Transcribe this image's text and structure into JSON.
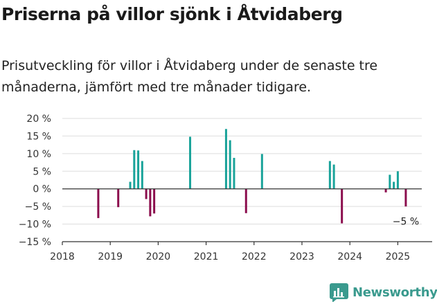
{
  "header": {
    "title": "Priserna på villor sjönk i Åtvidaberg",
    "subtitle": "Prisutveckling för villor i Åtvidaberg under de senaste tre månaderna, jämfört med tre månader tidigare."
  },
  "brand": {
    "name": "Newsworthy",
    "icon": "newsworthy-logo-icon",
    "color": "#3a9a8e"
  },
  "chart_data": {
    "type": "bar",
    "title": "",
    "xlabel": "",
    "ylabel": "",
    "ylim": [
      -15,
      20
    ],
    "xlim": [
      "2018-01",
      "2025-07"
    ],
    "grid": true,
    "colors": {
      "positive": "#1aa39a",
      "negative": "#8b0d4d",
      "zero_line": "#333333",
      "grid": "#dddddd"
    },
    "y_ticks": [
      {
        "value": 20,
        "label": "20 %"
      },
      {
        "value": 15,
        "label": "15 %"
      },
      {
        "value": 10,
        "label": "10 %"
      },
      {
        "value": 5,
        "label": "5 %"
      },
      {
        "value": 0,
        "label": "0 %"
      },
      {
        "value": -5,
        "label": "−5 %"
      },
      {
        "value": -10,
        "label": "−10 %"
      },
      {
        "value": -15,
        "label": "−15 %"
      }
    ],
    "x_ticks": [
      "2018",
      "2019",
      "2020",
      "2021",
      "2022",
      "2023",
      "2024",
      "2025"
    ],
    "series": [
      {
        "values": [
          {
            "x": "2018-10",
            "y": -8.3
          },
          {
            "x": "2019-03",
            "y": -5.2
          },
          {
            "x": "2019-06",
            "y": 2.0
          },
          {
            "x": "2019-07",
            "y": 11.0
          },
          {
            "x": "2019-08",
            "y": 10.9
          },
          {
            "x": "2019-09",
            "y": 7.9
          },
          {
            "x": "2019-10",
            "y": -2.9
          },
          {
            "x": "2019-11",
            "y": -7.8
          },
          {
            "x": "2019-12",
            "y": -7.0
          },
          {
            "x": "2020-09",
            "y": 14.8
          },
          {
            "x": "2021-06",
            "y": 17.0
          },
          {
            "x": "2021-07",
            "y": 13.8
          },
          {
            "x": "2021-08",
            "y": 8.8
          },
          {
            "x": "2021-11",
            "y": -6.9
          },
          {
            "x": "2022-03",
            "y": 9.9
          },
          {
            "x": "2023-08",
            "y": 7.9
          },
          {
            "x": "2023-09",
            "y": 6.9
          },
          {
            "x": "2023-11",
            "y": -9.8
          },
          {
            "x": "2024-10",
            "y": -1.0
          },
          {
            "x": "2024-11",
            "y": 4.0
          },
          {
            "x": "2024-12",
            "y": 2.0
          },
          {
            "x": "2025-01",
            "y": 5.0
          },
          {
            "x": "2025-03",
            "y": -5.0
          }
        ]
      }
    ],
    "annotations": [
      {
        "x": "2025-03",
        "text": "−5 %"
      }
    ]
  }
}
